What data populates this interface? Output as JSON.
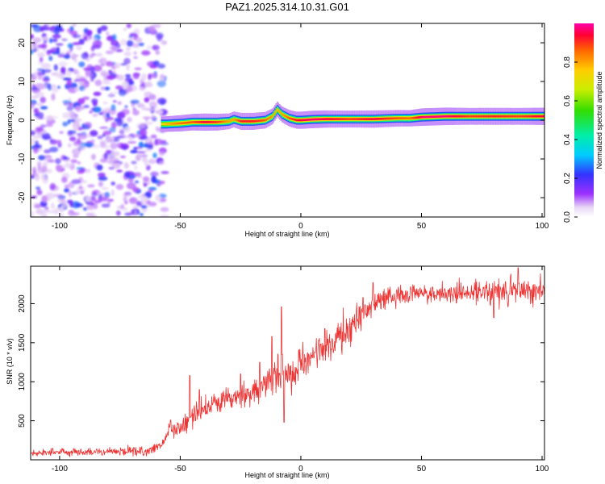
{
  "chart_data": [
    {
      "type": "heatmap",
      "title": "PAZ1.2025.314.10.31.G01",
      "xlabel": "Height of straight line (km)",
      "ylabel": "Frequency (Hz)",
      "xlim": [
        -112,
        101
      ],
      "ylim": [
        -25,
        25
      ],
      "xticks": [
        -100,
        -50,
        0,
        50,
        100
      ],
      "yticks": [
        -20,
        -10,
        0,
        10,
        20
      ],
      "colorbar": {
        "label": "Normalized spectral amplitude",
        "range": [
          0,
          1
        ],
        "ticks": [
          "0.0",
          "0.2",
          "0.4",
          "0.6",
          "0.8"
        ]
      },
      "noise_region_x": [
        -112,
        -58
      ],
      "ridge": {
        "x": [
          -58,
          -56,
          -50,
          -45,
          -40,
          -35,
          -30,
          -28,
          -25,
          -20,
          -15,
          -12,
          -10,
          -8,
          -5,
          -2,
          0,
          5,
          10,
          15,
          20,
          30,
          40,
          45,
          50,
          60,
          70,
          80,
          90,
          101
        ],
        "freq": [
          -1.0,
          -1.0,
          -0.8,
          -0.5,
          -0.5,
          -0.5,
          -0.3,
          0.2,
          -0.3,
          -0.3,
          0.0,
          1.0,
          2.8,
          1.5,
          0.5,
          0.0,
          0.0,
          0.2,
          0.3,
          0.3,
          0.3,
          0.3,
          0.5,
          0.5,
          0.8,
          1.0,
          1.0,
          1.0,
          1.0,
          1.0
        ],
        "amp": [
          0.45,
          0.55,
          0.7,
          0.75,
          0.9,
          0.8,
          0.6,
          0.6,
          0.85,
          0.85,
          0.75,
          0.6,
          0.55,
          0.6,
          0.75,
          0.85,
          0.9,
          0.95,
          0.9,
          0.85,
          0.8,
          0.9,
          0.75,
          0.7,
          0.95,
          0.95,
          0.8,
          0.85,
          0.8,
          0.9
        ]
      }
    },
    {
      "type": "line",
      "xlabel": "Height of straight line (km)",
      "ylabel": "SNR (10 * v/v)",
      "xlim": [
        -112,
        101
      ],
      "ylim": [
        0,
        2480
      ],
      "xticks": [
        -100,
        -50,
        0,
        50,
        100
      ],
      "yticks": [
        500,
        1000,
        1500,
        2000
      ],
      "color": "#ee3333",
      "trend": {
        "x": [
          -112,
          -100,
          -80,
          -62,
          -58,
          -55,
          -50,
          -40,
          -30,
          -20,
          -12,
          -10,
          -5,
          0,
          10,
          20,
          25,
          30,
          40,
          50,
          60,
          70,
          80,
          90,
          101
        ],
        "y": [
          90,
          100,
          100,
          120,
          180,
          350,
          430,
          650,
          750,
          860,
          1000,
          1150,
          1050,
          1200,
          1450,
          1650,
          1850,
          2000,
          2120,
          2130,
          2140,
          2140,
          2150,
          2170,
          2180
        ]
      },
      "noise": {
        "x": [
          -112,
          -60,
          -50,
          -20,
          0,
          20,
          30,
          50,
          75,
          101
        ],
        "amp": [
          40,
          50,
          110,
          180,
          200,
          200,
          130,
          90,
          130,
          150
        ]
      },
      "spikes": [
        {
          "x": -54,
          "y": 510
        },
        {
          "x": -46,
          "y": 1080
        },
        {
          "x": -42,
          "y": 900
        },
        {
          "x": -25,
          "y": 1100
        },
        {
          "x": -17,
          "y": 1250
        },
        {
          "x": -12,
          "y": 1580
        },
        {
          "x": -8,
          "y": 1960
        },
        {
          "x": -7,
          "y": 480
        },
        {
          "x": 10,
          "y": 1680
        },
        {
          "x": 30,
          "y": 2270
        },
        {
          "x": 80,
          "y": 1820
        },
        {
          "x": 90,
          "y": 2460
        }
      ]
    }
  ]
}
